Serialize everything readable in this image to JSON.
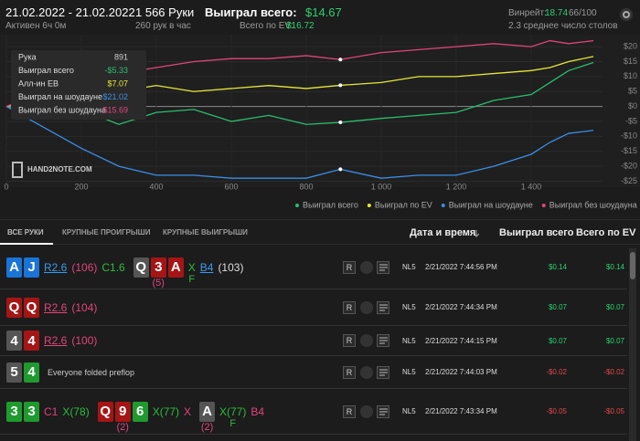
{
  "header": {
    "date_range": "21.02.2022 - 21.02.2022",
    "active": "Активен 6ч 0м",
    "hands": "1 566 Руки",
    "rate": "260 рук в час",
    "won_label": "Выиграл всего:",
    "won": "$14.67",
    "ev_label": "Всего по EV:",
    "ev": "$16.72",
    "winrate_label": "Винрейт:",
    "winrate": "18.74",
    "winrate_sub": "66/100",
    "tables": "2.3 среднее число столов"
  },
  "chart_data": {
    "type": "line",
    "x": [
      0,
      100,
      200,
      300,
      400,
      500,
      600,
      700,
      800,
      891,
      1000,
      1100,
      1200,
      1300,
      1400,
      1450,
      1500,
      1566
    ],
    "series": [
      {
        "name": "Выиграл всего",
        "color": "#2bbd6e",
        "values": [
          0,
          -4,
          -1,
          -6,
          -2,
          -1,
          -5,
          -3,
          -6,
          -5.33,
          -4,
          -3,
          -2,
          2,
          4,
          8,
          12,
          14.67
        ]
      },
      {
        "name": "Выиграл по EV",
        "color": "#e6e63a",
        "values": [
          0,
          3,
          4,
          5,
          7,
          5,
          6,
          7,
          6,
          7.07,
          8,
          10,
          10,
          11,
          12,
          13,
          15,
          16.72
        ]
      },
      {
        "name": "Выиграл на шоудауне",
        "color": "#3a8ee6",
        "values": [
          0,
          -7,
          -14,
          -20,
          -23,
          -23,
          -24,
          -24,
          -24,
          -21.02,
          -24,
          -23,
          -23,
          -20,
          -16,
          -12,
          -9,
          -8
        ]
      },
      {
        "name": "Выиграл без шоудауна",
        "color": "#e0457b",
        "values": [
          0,
          5,
          9,
          11,
          13,
          15,
          16,
          16,
          17,
          15.69,
          18,
          19,
          20,
          21,
          20,
          22,
          21,
          22
        ]
      }
    ],
    "xlim": [
      0,
      1600
    ],
    "xticks": [
      0,
      200,
      400,
      600,
      800,
      {
        "value": 1000,
        "label": "1 000"
      },
      {
        "value": 1200,
        "label": "1 200"
      },
      {
        "value": 1400,
        "label": "1 400"
      }
    ],
    "ylim": [
      -27,
      24
    ],
    "yticks": [
      {
        "value": 20,
        "label": "$20"
      },
      {
        "value": 15,
        "label": "$15"
      },
      {
        "value": 10,
        "label": "$10"
      },
      {
        "value": 5,
        "label": "$5"
      },
      {
        "value": 0,
        "label": "$0"
      },
      {
        "value": -5,
        "label": "-$5"
      },
      {
        "value": -10,
        "label": "-$10"
      },
      {
        "value": -15,
        "label": "-$15"
      },
      {
        "value": -20,
        "label": "-$20"
      },
      {
        "value": -25,
        "label": "-$25"
      }
    ],
    "grid": true
  },
  "tooltip": {
    "rows": [
      {
        "label": "Рука",
        "value": "891",
        "color": "#cccccc"
      },
      {
        "label": "Выиграл всего",
        "value": "-$5.33",
        "color": "#2bbd6e"
      },
      {
        "label": "Алл-ин EB",
        "value": "$7.07",
        "color": "#e6e63a"
      },
      {
        "label": "Выиграл на шоудауне",
        "value": "-$21.02",
        "color": "#3a8ee6"
      },
      {
        "label": "Выиграл без шоудауна",
        "value": "$15.69",
        "color": "#e0457b"
      }
    ]
  },
  "logo": "HAND2NOTE.COM",
  "tabs": [
    "ВСЕ РУКИ",
    "КРУПНЫЕ ПРОИГРЫШИ",
    "КРУПНЫЕ ВЫИГРЫШИ"
  ],
  "columns": {
    "date": "Дата и время",
    "won": "Выиграл всего",
    "ev": "Всего по EV"
  },
  "replay_button": "R",
  "table": {
    "rows": [
      {
        "items": [
          {
            "cards": [
              {
                "rank": "A",
                "color": "#1a73d6"
              },
              {
                "rank": "J",
                "color": "#1a73d6"
              }
            ]
          },
          {
            "text": "R2.6",
            "color": "#3a9af0",
            "underline": true
          },
          {
            "text": "(106)",
            "color": "#e0457b"
          },
          {
            "text": "C1.6",
            "color": "#2bbd3e"
          },
          {
            "cards": [
              {
                "rank": "Q",
                "color": "#555555"
              },
              {
                "rank": "3",
                "color": "#a51515"
              },
              {
                "rank": "A",
                "color": "#a51515"
              }
            ],
            "below": "(5)"
          },
          {
            "text": "X",
            "color": "#2bbd3e",
            "below": "F"
          },
          {
            "text": "B4",
            "color": "#3a9af0",
            "underline": true
          },
          {
            "text": "(103)",
            "color": "#dddddd"
          }
        ],
        "stake": "NL5",
        "date": "2/21/2022 7:44:56 PM",
        "won": "$0.14",
        "ev": "$0.14"
      },
      {
        "items": [
          {
            "cards": [
              {
                "rank": "Q",
                "color": "#a51515"
              },
              {
                "rank": "Q",
                "color": "#a51515"
              }
            ]
          },
          {
            "text": "R2.6",
            "color": "#e0457b",
            "underline": true
          },
          {
            "text": "(104)",
            "color": "#e0457b"
          }
        ],
        "stake": "NL5",
        "date": "2/21/2022 7:44:34 PM",
        "won": "$0.07",
        "ev": "$0.07"
      },
      {
        "items": [
          {
            "cards": [
              {
                "rank": "4",
                "color": "#555555"
              },
              {
                "rank": "4",
                "color": "#a51515"
              }
            ]
          },
          {
            "text": "R2.6",
            "color": "#e0457b",
            "underline": true
          },
          {
            "text": "(100)",
            "color": "#e0457b"
          }
        ],
        "stake": "NL5",
        "date": "2/21/2022 7:44:15 PM",
        "won": "$0.07",
        "ev": "$0.07"
      },
      {
        "items": [
          {
            "cards": [
              {
                "rank": "5",
                "color": "#555555"
              },
              {
                "rank": "4",
                "color": "#1f9a2f"
              }
            ]
          },
          {
            "text": "Everyone folded preflop",
            "color": "#cccccc",
            "small": true
          }
        ],
        "stake": "NL5",
        "date": "2/21/2022 7:44:03 PM",
        "won": "-$0.02",
        "ev": "-$0.02"
      },
      {
        "items": [
          {
            "cards": [
              {
                "rank": "3",
                "color": "#1f9a2f"
              },
              {
                "rank": "3",
                "color": "#1f9a2f"
              }
            ]
          },
          {
            "text": "C1",
            "color": "#e0457b"
          },
          {
            "text": "X(78)",
            "color": "#2bbd3e"
          },
          {
            "cards": [
              {
                "rank": "Q",
                "color": "#a51515"
              },
              {
                "rank": "9",
                "color": "#a51515"
              },
              {
                "rank": "6",
                "color": "#1f9a2f"
              }
            ],
            "below": "(2)"
          },
          {
            "text": "X(77)",
            "color": "#2bbd3e"
          },
          {
            "text": "X",
            "color": "#e0457b"
          },
          {
            "cards": [
              {
                "rank": "A",
                "color": "#555555"
              }
            ],
            "below": "(2)"
          },
          {
            "text": "X(77)",
            "color": "#2bbd3e",
            "below": "F"
          },
          {
            "text": "B4",
            "color": "#e0457b"
          }
        ],
        "stake": "NL5",
        "date": "2/21/2022 7:43:34 PM",
        "won": "-$0.05",
        "ev": "-$0.05"
      }
    ]
  }
}
